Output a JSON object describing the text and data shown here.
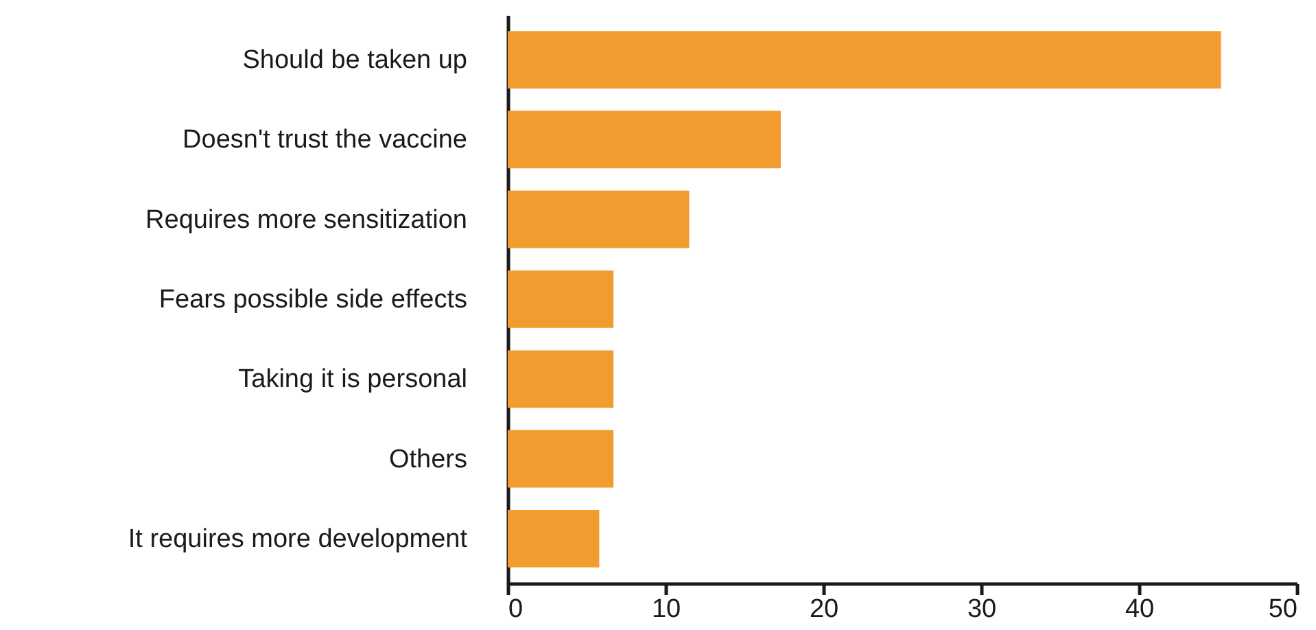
{
  "chart_data": {
    "type": "bar",
    "orientation": "horizontal",
    "categories": [
      "Should be taken up",
      "Doesn't trust the vaccine",
      "Requires more sensitization",
      "Fears possible side effects",
      "Taking it is personal",
      "Others",
      "It requires more development"
    ],
    "values": [
      45.2,
      17.3,
      11.5,
      6.7,
      6.7,
      6.7,
      5.8
    ],
    "color": "#f29b2e",
    "xlim": [
      0,
      50
    ],
    "xticks": [
      0,
      10,
      20,
      30,
      40,
      50
    ],
    "grid": false
  }
}
